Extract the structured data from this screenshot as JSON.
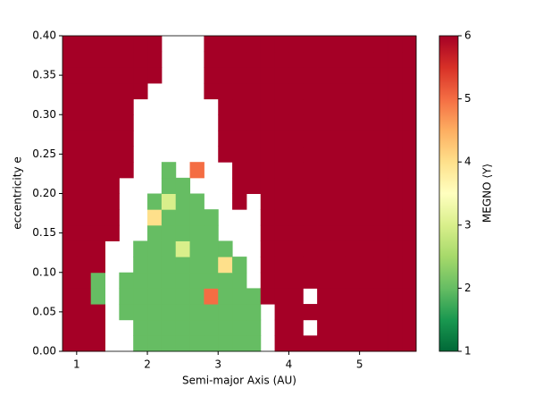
{
  "chart_data": {
    "type": "heatmap",
    "xlabel": "Semi-major Axis (AU)",
    "ylabel": "eccentricity e",
    "xlim": [
      0.8,
      5.8
    ],
    "ylim": [
      0,
      0.4
    ],
    "xticks": [
      1,
      2,
      3,
      4,
      5
    ],
    "yticks": [
      {
        "value": 0,
        "label": "0.00"
      },
      {
        "value": 0.05,
        "label": "0.05"
      },
      {
        "value": 0.1,
        "label": "0.10"
      },
      {
        "value": 0.15,
        "label": "0.15"
      },
      {
        "value": 0.2,
        "label": "0.20"
      },
      {
        "value": 0.25,
        "label": "0.25"
      },
      {
        "value": 0.3,
        "label": "0.30"
      },
      {
        "value": 0.35,
        "label": "0.35"
      },
      {
        "value": 0.4,
        "label": "0.40"
      }
    ],
    "colorbar": {
      "label": "MEGNO ⟨Y⟩",
      "colormap": "RdYlGn_r",
      "lim": [
        1,
        6
      ],
      "ticks": [
        1,
        2,
        3,
        4,
        5,
        6
      ]
    },
    "z": [
      [
        6,
        6,
        6,
        null,
        null,
        2,
        2,
        2,
        2,
        2,
        2,
        2,
        2,
        2,
        null,
        6,
        6,
        6,
        6,
        6,
        6,
        6,
        6,
        6,
        6
      ],
      [
        6,
        6,
        6,
        null,
        null,
        2,
        2,
        2,
        2,
        2,
        2,
        2,
        2,
        2,
        null,
        6,
        6,
        null,
        6,
        6,
        6,
        6,
        6,
        6,
        6
      ],
      [
        6,
        6,
        6,
        null,
        2,
        2,
        2,
        2,
        2,
        2,
        2,
        2,
        2,
        2,
        null,
        6,
        6,
        6,
        6,
        6,
        6,
        6,
        6,
        6,
        6
      ],
      [
        6,
        6,
        2,
        null,
        2,
        2,
        2,
        2,
        2,
        2,
        5,
        2,
        2,
        2,
        6,
        6,
        6,
        null,
        6,
        6,
        6,
        6,
        6,
        6,
        6
      ],
      [
        6,
        6,
        2,
        null,
        2,
        2,
        2,
        2,
        2,
        2,
        2,
        2,
        2,
        null,
        6,
        6,
        6,
        6,
        6,
        6,
        6,
        6,
        6,
        6,
        6
      ],
      [
        6,
        6,
        6,
        null,
        null,
        2,
        2,
        2,
        2,
        2,
        2,
        4,
        2,
        null,
        6,
        6,
        6,
        6,
        6,
        6,
        6,
        6,
        6,
        6,
        6
      ],
      [
        6,
        6,
        6,
        null,
        null,
        2,
        2,
        2,
        3,
        2,
        2,
        2,
        null,
        null,
        6,
        6,
        6,
        6,
        6,
        6,
        6,
        6,
        6,
        6,
        6
      ],
      [
        6,
        6,
        6,
        6,
        null,
        null,
        2,
        2,
        2,
        2,
        2,
        null,
        null,
        null,
        6,
        6,
        6,
        6,
        6,
        6,
        6,
        6,
        6,
        6,
        6
      ],
      [
        6,
        6,
        6,
        6,
        null,
        null,
        4,
        2,
        2,
        2,
        2,
        null,
        null,
        null,
        6,
        6,
        6,
        6,
        6,
        6,
        6,
        6,
        6,
        6,
        6
      ],
      [
        6,
        6,
        6,
        6,
        null,
        null,
        2,
        3,
        2,
        2,
        null,
        null,
        6,
        null,
        6,
        6,
        6,
        6,
        6,
        6,
        6,
        6,
        6,
        6,
        6
      ],
      [
        6,
        6,
        6,
        6,
        null,
        null,
        null,
        2,
        2,
        null,
        null,
        null,
        6,
        6,
        6,
        6,
        6,
        6,
        6,
        6,
        6,
        6,
        6,
        6,
        6
      ],
      [
        6,
        6,
        6,
        6,
        6,
        null,
        null,
        2,
        null,
        5,
        null,
        null,
        6,
        6,
        6,
        6,
        6,
        6,
        6,
        6,
        6,
        6,
        6,
        6,
        6
      ],
      [
        6,
        6,
        6,
        6,
        6,
        null,
        null,
        null,
        null,
        null,
        null,
        6,
        6,
        6,
        6,
        6,
        6,
        6,
        6,
        6,
        6,
        6,
        6,
        6,
        6
      ],
      [
        6,
        6,
        6,
        6,
        6,
        null,
        null,
        null,
        null,
        null,
        null,
        6,
        6,
        6,
        6,
        6,
        6,
        6,
        6,
        6,
        6,
        6,
        6,
        6,
        6
      ],
      [
        6,
        6,
        6,
        6,
        6,
        null,
        null,
        null,
        null,
        null,
        null,
        6,
        6,
        6,
        6,
        6,
        6,
        6,
        6,
        6,
        6,
        6,
        6,
        6,
        6
      ],
      [
        6,
        6,
        6,
        6,
        6,
        null,
        null,
        null,
        null,
        null,
        null,
        6,
        6,
        6,
        6,
        6,
        6,
        6,
        6,
        6,
        6,
        6,
        6,
        6,
        6
      ],
      [
        6,
        6,
        6,
        6,
        6,
        6,
        null,
        null,
        null,
        null,
        6,
        6,
        6,
        6,
        6,
        6,
        6,
        6,
        6,
        6,
        6,
        6,
        6,
        6,
        6
      ],
      [
        6,
        6,
        6,
        6,
        6,
        6,
        6,
        null,
        null,
        null,
        6,
        6,
        6,
        6,
        6,
        6,
        6,
        6,
        6,
        6,
        6,
        6,
        6,
        6,
        6
      ],
      [
        6,
        6,
        6,
        6,
        6,
        6,
        6,
        null,
        null,
        null,
        6,
        6,
        6,
        6,
        6,
        6,
        6,
        6,
        6,
        6,
        6,
        6,
        6,
        6,
        6
      ],
      [
        6,
        6,
        6,
        6,
        6,
        6,
        6,
        null,
        null,
        null,
        6,
        6,
        6,
        6,
        6,
        6,
        6,
        6,
        6,
        6,
        6,
        6,
        6,
        6,
        6
      ]
    ]
  }
}
